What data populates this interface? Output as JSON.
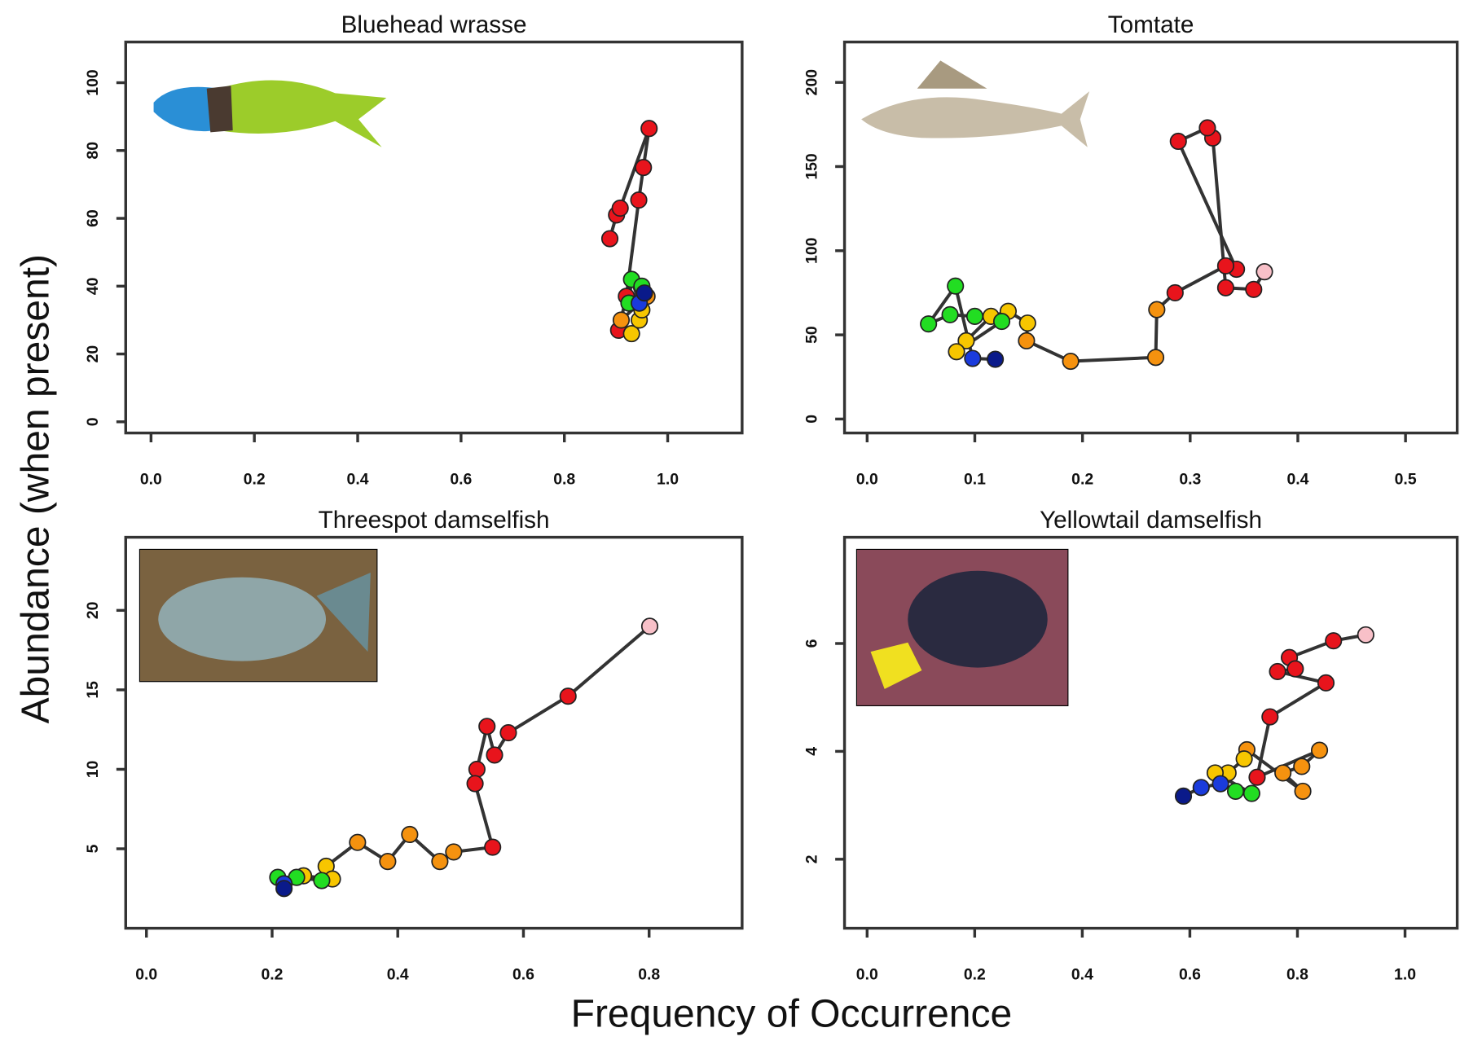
{
  "shared_labels": {
    "x": "Frequency of Occurrence",
    "y": "Abundance (when present)"
  },
  "chart_data": [
    {
      "type": "scatter",
      "title": "Bluehead wrasse",
      "x": [
        0.888,
        0.901,
        0.908,
        0.964,
        0.953,
        0.944,
        0.92,
        0.905,
        0.91,
        0.96,
        0.93,
        0.945,
        0.95,
        0.93,
        0.925,
        0.95,
        0.945,
        0.955
      ],
      "y": [
        54,
        61,
        63,
        86.5,
        75,
        65.4,
        37,
        27,
        30,
        37,
        26,
        30,
        33,
        42,
        35,
        40,
        35,
        38
      ],
      "colors": [
        "#e8141c",
        "#e8141c",
        "#e8141c",
        "#e8141c",
        "#e8141c",
        "#e8141c",
        "#e8141c",
        "#e8141c",
        "#f5920f",
        "#f5920f",
        "#f7c600",
        "#f7c600",
        "#f7c600",
        "#22dd22",
        "#22dd22",
        "#22dd22",
        "#1a3bdc",
        "#0a1a8a"
      ],
      "xlim": [
        -0.049,
        1.144
      ],
      "ylim": [
        -3.3,
        112
      ],
      "xticks": [
        {
          "value": 0,
          "label": "0.0"
        },
        0.2,
        0.4,
        0.6,
        0.8,
        {
          "value": 1,
          "label": "1.0"
        }
      ],
      "yticks": [
        0,
        20,
        40,
        60,
        80,
        100
      ]
    },
    {
      "type": "scatter",
      "title": "Tomtate",
      "x": [
        0.369,
        0.359,
        0.333,
        0.321,
        0.316,
        0.289,
        0.343,
        0.333,
        0.286,
        0.269,
        0.268,
        0.189,
        0.148,
        0.149,
        0.131,
        0.115,
        0.092,
        0.083,
        0.125,
        0.1,
        0.077,
        0.057,
        0.082,
        0.098,
        0.119
      ],
      "y": [
        87.5,
        77,
        78,
        167,
        173,
        165,
        89,
        91,
        75,
        65,
        36.6,
        34.3,
        46.5,
        57,
        64,
        61,
        46.5,
        40,
        58,
        61,
        62,
        56.5,
        79,
        36,
        35.5
      ],
      "colors": [
        "#f8c0c8",
        "#e8141c",
        "#e8141c",
        "#e8141c",
        "#e8141c",
        "#e8141c",
        "#e8141c",
        "#e8141c",
        "#e8141c",
        "#f5920f",
        "#f5920f",
        "#f5920f",
        "#f5920f",
        "#f7c600",
        "#f7c600",
        "#f7c600",
        "#f7c600",
        "#f7c600",
        "#22dd22",
        "#22dd22",
        "#22dd22",
        "#22dd22",
        "#22dd22",
        "#1a3bdc",
        "#0a1a8a"
      ],
      "xlim": [
        -0.021,
        0.548
      ],
      "ylim": [
        -8.3,
        224
      ],
      "xticks": [
        {
          "value": 0,
          "label": "0.0"
        },
        0.1,
        0.2,
        0.3,
        0.4,
        0.5
      ],
      "yticks": [
        0,
        50,
        100,
        150,
        200
      ]
    },
    {
      "type": "scatter",
      "title": "Threespot damselfish",
      "x": [
        0.801,
        0.671,
        0.576,
        0.554,
        0.542,
        0.526,
        0.523,
        0.551,
        0.489,
        0.467,
        0.419,
        0.384,
        0.336,
        0.286,
        0.296,
        0.25,
        0.279,
        0.239,
        0.209,
        0.219,
        0.219
      ],
      "y": [
        19.0,
        14.6,
        12.3,
        10.9,
        12.7,
        10.0,
        9.1,
        5.1,
        4.8,
        4.2,
        5.9,
        4.2,
        5.4,
        3.9,
        3.1,
        3.3,
        3.0,
        3.2,
        3.2,
        2.8,
        2.5
      ],
      "colors": [
        "#f8c0c8",
        "#e8141c",
        "#e8141c",
        "#e8141c",
        "#e8141c",
        "#e8141c",
        "#e8141c",
        "#e8141c",
        "#f5920f",
        "#f5920f",
        "#f5920f",
        "#f5920f",
        "#f5920f",
        "#f7c600",
        "#f7c600",
        "#f7c600",
        "#22dd22",
        "#22dd22",
        "#22dd22",
        "#1a3bdc",
        "#0a1a8a"
      ],
      "xlim": [
        -0.033,
        0.948
      ],
      "ylim": [
        0,
        24.6
      ],
      "xticks": [
        {
          "value": 0,
          "label": "0.0"
        },
        0.2,
        0.4,
        0.6,
        0.8
      ],
      "yticks": [
        5,
        10,
        15,
        20
      ]
    },
    {
      "type": "scatter",
      "title": "Yellowtail damselfish",
      "x": [
        0.927,
        0.867,
        0.785,
        0.796,
        0.763,
        0.853,
        0.749,
        0.725,
        0.841,
        0.808,
        0.773,
        0.81,
        0.706,
        0.701,
        0.671,
        0.647,
        0.715,
        0.685,
        0.657,
        0.621,
        0.588
      ],
      "y": [
        6.16,
        6.05,
        5.74,
        5.53,
        5.48,
        5.27,
        4.64,
        3.52,
        4.02,
        3.72,
        3.6,
        3.26,
        4.03,
        3.86,
        3.6,
        3.6,
        3.22,
        3.26,
        3.4,
        3.33,
        3.17
      ],
      "colors": [
        "#f8c0c8",
        "#e8141c",
        "#e8141c",
        "#e8141c",
        "#e8141c",
        "#e8141c",
        "#e8141c",
        "#e8141c",
        "#f5920f",
        "#f5920f",
        "#f5920f",
        "#f5920f",
        "#f5920f",
        "#f7c600",
        "#f7c600",
        "#f7c600",
        "#22dd22",
        "#22dd22",
        "#1a3bdc",
        "#1a3bdc",
        "#0a1a8a"
      ],
      "xlim": [
        -0.042,
        1.097
      ],
      "ylim": [
        0.72,
        7.97
      ],
      "xticks": [
        {
          "value": 0,
          "label": "0.0"
        },
        0.2,
        0.4,
        0.6,
        0.8,
        {
          "value": 1,
          "label": "1.0"
        }
      ],
      "yticks": [
        2,
        4,
        6
      ]
    }
  ]
}
